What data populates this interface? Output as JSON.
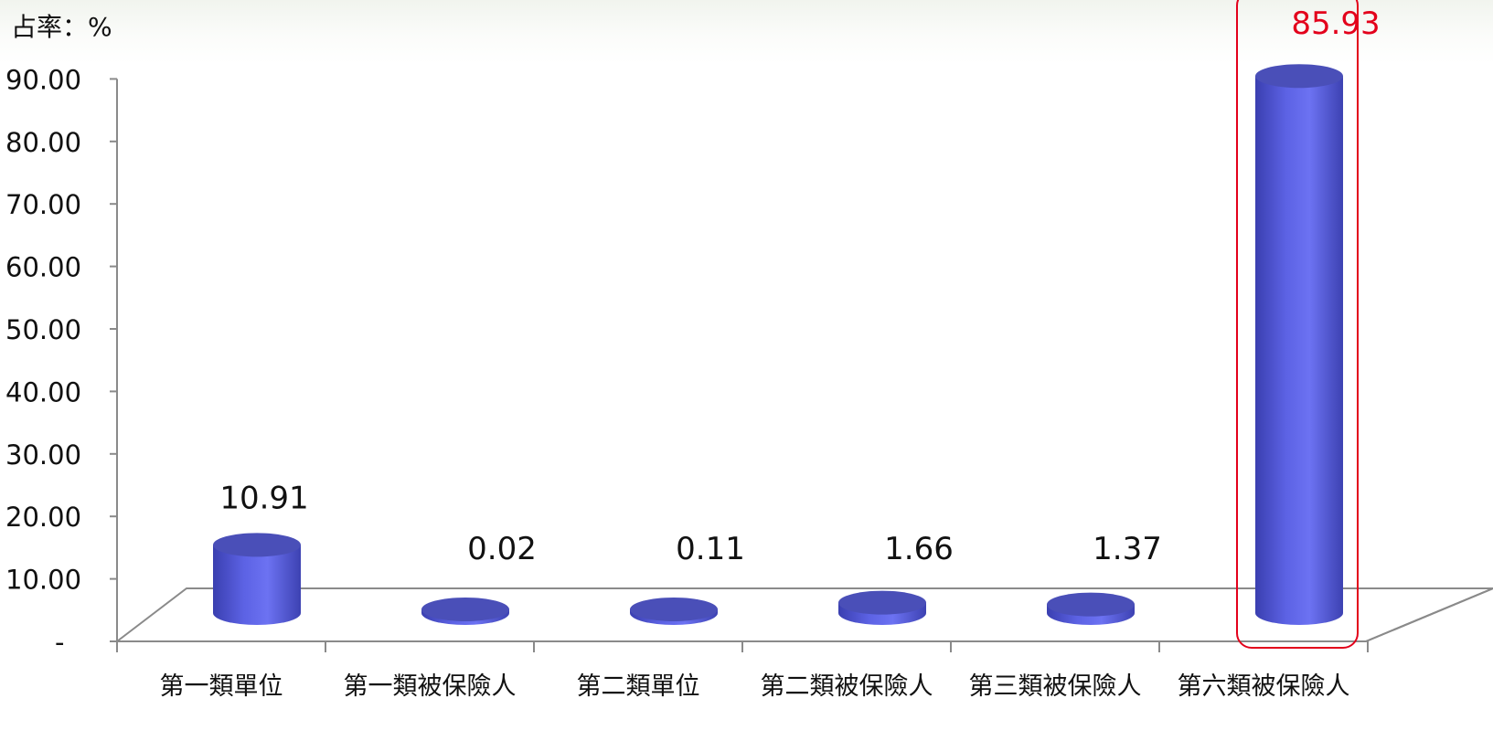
{
  "chart_data": {
    "type": "bar",
    "unit_label": "占率：%",
    "categories": [
      "第一類單位",
      "第一類被保險人",
      "第二類單位",
      "第二類被保險人",
      "第三類被保險人",
      "第六類被保險人"
    ],
    "series": [
      {
        "values": [
          10.91,
          0.02,
          0.11,
          1.66,
          1.37,
          85.93
        ]
      }
    ],
    "value_labels": [
      "10.91",
      "0.02",
      "0.11",
      "1.66",
      "1.37",
      "85.93"
    ],
    "y_ticks": [
      "-",
      "10.00",
      "20.00",
      "30.00",
      "40.00",
      "50.00",
      "60.00",
      "70.00",
      "80.00",
      "90.00"
    ],
    "ylim": [
      0,
      90
    ],
    "highlight_index": 5,
    "legend": "none",
    "grid": false,
    "colors": {
      "bar": "#5a5fe0",
      "bar_top": "#4a4fb8",
      "highlight": "#e3001b",
      "axis": "#8a8a8a"
    }
  }
}
